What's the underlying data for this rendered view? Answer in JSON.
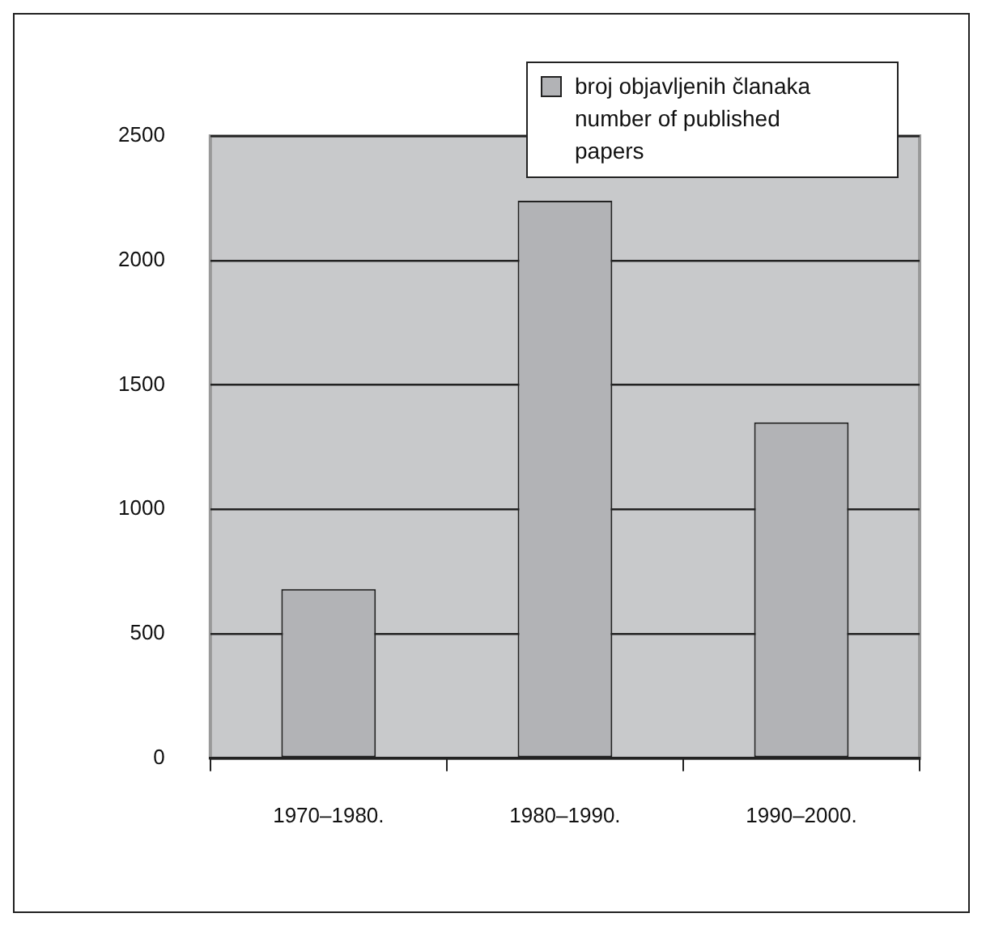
{
  "chart_data": {
    "type": "bar",
    "categories": [
      "1970–1980.",
      "1980–1990.",
      "1990–2000."
    ],
    "series": [
      {
        "name": "broj objavljenih članaka number of published papers",
        "color": "#b2b3b6",
        "values": [
          680,
          2240,
          1350
        ]
      }
    ],
    "ylim": [
      0,
      2500
    ],
    "yticks": [
      0,
      500,
      1000,
      1500,
      2000,
      2500
    ],
    "grid": "y",
    "legend": "top right"
  }
}
